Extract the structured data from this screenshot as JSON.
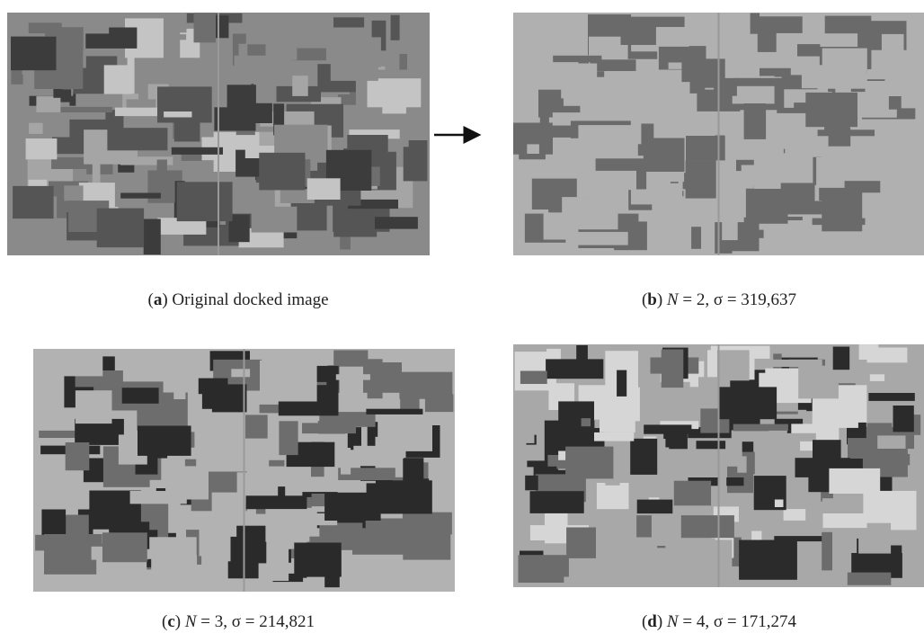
{
  "figure": {
    "panels": [
      {
        "caption": [
          {
            "text": "(",
            "style": "normal"
          },
          {
            "text": "a",
            "style": "bold"
          },
          {
            "text": ") Original docked image",
            "style": "normal"
          }
        ]
      },
      {
        "caption": [
          {
            "text": "(",
            "style": "normal"
          },
          {
            "text": "b",
            "style": "bold"
          },
          {
            "text": ") ",
            "style": "normal"
          },
          {
            "text": "N",
            "style": "italic"
          },
          {
            "text": " = 2, σ = 319,637",
            "style": "normal"
          }
        ]
      },
      {
        "caption": [
          {
            "text": "(",
            "style": "normal"
          },
          {
            "text": "c",
            "style": "bold"
          },
          {
            "text": ") ",
            "style": "normal"
          },
          {
            "text": "N",
            "style": "italic"
          },
          {
            "text": " = 3, σ = 214,821",
            "style": "normal"
          }
        ]
      },
      {
        "caption": [
          {
            "text": "(",
            "style": "normal"
          },
          {
            "text": "d",
            "style": "bold"
          },
          {
            "text": ") ",
            "style": "normal"
          },
          {
            "text": "N",
            "style": "italic"
          },
          {
            "text": " = 4, σ = 171,274",
            "style": "normal"
          }
        ]
      }
    ]
  }
}
